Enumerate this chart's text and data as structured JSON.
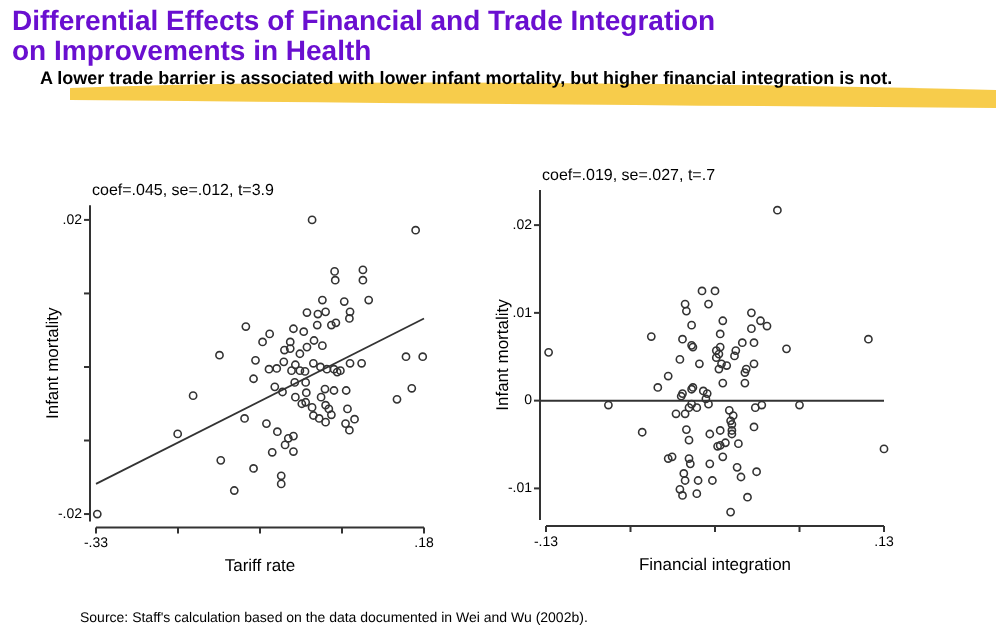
{
  "chart_data": [
    {
      "type": "scatter",
      "title": "Differential Effects of Financial and Trade Integration on Improvements in Health",
      "subtitle": "A lower trade barrier is associated with lower infant mortality, but higher financial integration is not.",
      "xlabel": "Tariff rate",
      "ylabel": "Infant mortality",
      "annotations": [
        "coef=.045, se=.012, t=3.9",
        "Source:  Staff's calculation based on the data documented in Wei and Wu (2002b)."
      ],
      "xlim": [
        -0.33,
        0.18
      ],
      "ylim": [
        -0.021,
        0.022
      ],
      "xticks": [
        {
          "value": -0.33,
          "label": "-.33"
        },
        {
          "value": -0.2025,
          "label": null
        },
        {
          "value": -0.075,
          "label": null
        },
        {
          "value": 0.0525,
          "label": null
        },
        {
          "value": 0.18,
          "label": ".18"
        }
      ],
      "yticks": [
        {
          "value": -0.02,
          "label": "-.02"
        },
        {
          "value": -0.01,
          "label": null
        },
        {
          "value": 0,
          "label": null
        },
        {
          "value": 0.01,
          "label": null
        },
        {
          "value": 0.02,
          "label": ".02"
        }
      ],
      "series": [
        {
          "color": "#333333",
          "marker": "circle",
          "x": [
            -0.328,
            0.006,
            0.167,
            0.085,
            0.041,
            0.085,
            0.042,
            0.094,
            0.056,
            0.022,
            0.027,
            0.065,
            0.064,
            -0.002,
            0.015,
            0.043,
            0.036,
            0.014,
            -0.097,
            -0.06,
            -0.071,
            -0.023,
            -0.007,
            0.009,
            -0.002,
            -0.028,
            -0.028,
            -0.037,
            -0.138,
            0.022,
            -0.038,
            -0.013,
            -0.049,
            -0.02,
            -0.005,
            -0.026,
            -0.013,
            0.008,
            0.019,
            0.029,
            0.04,
            0.045,
            0.05,
            0.065,
            0.083,
            0.152,
            0.178,
            -0.082,
            -0.061,
            -0.085,
            -0.021,
            -0.052,
            -0.04,
            -0.004,
            -0.003,
            0.026,
            0.04,
            0.059,
            -0.179,
            -0.02,
            -0.01,
            -0.004,
            0.006,
            0.02,
            0.027,
            0.032,
            0.027,
            0.017,
            0.008,
            0.036,
            0.061,
            0.161,
            0.138,
            0.072,
            0.058,
            0.064,
            -0.099,
            -0.065,
            -0.048,
            -0.031,
            -0.023,
            -0.036,
            -0.023,
            -0.056,
            -0.042,
            -0.042,
            -0.085,
            -0.136,
            -0.115,
            -0.203
          ],
          "values": [
            -0.02,
            0.02,
            0.0186,
            0.0132,
            0.013,
            0.0118,
            0.0118,
            0.0091,
            0.0089,
            0.0091,
            0.0075,
            0.0075,
            0.0066,
            0.0074,
            0.0072,
            0.006,
            0.0057,
            0.0057,
            0.0055,
            0.0045,
            0.0034,
            0.0052,
            0.0048,
            0.0036,
            0.0027,
            0.0034,
            0.0025,
            0.0023,
            0.0016,
            0.0029,
            0.0007,
            0.0018,
            -0.0002,
            0.0003,
            -0.0006,
            -0.0005,
            -0.0005,
            0.0005,
            0,
            -0.0003,
            -0.0003,
            -0.0007,
            -0.0005,
            0.0005,
            0.0005,
            0.0014,
            0.0014,
            0.0009,
            -0.0003,
            -0.0016,
            -0.0021,
            -0.0027,
            -0.0034,
            -0.0021,
            -0.0035,
            -0.003,
            -0.0032,
            -0.0032,
            -0.0039,
            -0.0041,
            -0.005,
            -0.0048,
            -0.0055,
            -0.0041,
            -0.0052,
            -0.0057,
            -0.0075,
            -0.007,
            -0.0066,
            -0.0065,
            -0.0057,
            -0.0029,
            -0.0044,
            -0.0071,
            -0.0077,
            -0.0086,
            -0.007,
            -0.0077,
            -0.0088,
            -0.0097,
            -0.0094,
            -0.0106,
            -0.0115,
            -0.0116,
            -0.0148,
            -0.0159,
            -0.0138,
            -0.0127,
            -0.0168,
            -0.0091
          ]
        },
        {
          "type": "line",
          "marker": "none",
          "color": "#333333",
          "x": [
            -0.33,
            0.18
          ],
          "values": [
            -0.0159,
            0.0066
          ]
        }
      ]
    },
    {
      "type": "scatter",
      "xlabel": "Financial integration",
      "ylabel": "Infant mortality",
      "annotations": [
        "coef=.019, se=.027, t=.7"
      ],
      "xlim": [
        -0.13,
        0.13
      ],
      "ylim": [
        -0.0136,
        0.024
      ],
      "xticks": [
        {
          "value": -0.13,
          "label": "-.13"
        },
        {
          "value": -0.065,
          "label": null
        },
        {
          "value": 0,
          "label": null
        },
        {
          "value": 0.065,
          "label": null
        },
        {
          "value": 0.13,
          "label": ".13"
        }
      ],
      "yticks": [
        {
          "value": -0.01,
          "label": "-.01"
        },
        {
          "value": 0,
          "label": "0"
        },
        {
          "value": 0.01,
          "label": ".01"
        },
        {
          "value": 0.02,
          "label": ".02"
        }
      ],
      "marker": "circle",
      "ref_lines": [
        {
          "axis": "y",
          "value": 0,
          "color": "#333333"
        }
      ],
      "series": [
        {
          "color": "#333333",
          "x": [
            -0.128,
            -0.082,
            -0.056,
            -0.049,
            -0.044,
            -0.036,
            -0.036,
            -0.033,
            -0.03,
            -0.027,
            -0.026,
            -0.025,
            -0.023,
            -0.023,
            -0.022,
            -0.018,
            -0.025,
            -0.018,
            -0.017,
            -0.018,
            -0.017,
            -0.022,
            -0.02,
            -0.02,
            -0.019,
            -0.024,
            -0.023,
            -0.027,
            -0.025,
            -0.014,
            -0.013,
            -0.02,
            -0.018,
            -0.014,
            -0.012,
            -0.01,
            -0.009,
            -0.007,
            -0.006,
            -0.005,
            -0.005,
            -0.004,
            -0.004,
            -0.002,
            0,
            0.001,
            0.001,
            0.003,
            0.003,
            0.004,
            0.004,
            0.005,
            0.006,
            0.006,
            0.004,
            0.004,
            0.002,
            0.006,
            0.008,
            0.009,
            0.011,
            0.012,
            0.013,
            0.013,
            0.013,
            0.014,
            0.012,
            0.015,
            0.016,
            0.017,
            0.018,
            0.02,
            0.021,
            0.023,
            0.023,
            0.024,
            0.025,
            0.028,
            0.028,
            0.03,
            0.03,
            0.03,
            0.031,
            0.032,
            0.035,
            0.036,
            0.04,
            0.048,
            0.055,
            0.065,
            0.118,
            0.13
          ],
          "values": [
            0.0055,
            -0.0005,
            -0.0036,
            0.0073,
            0.0015,
            0.0028,
            -0.0066,
            -0.0064,
            -0.0015,
            0.0047,
            0.0005,
            0.0008,
            -0.0015,
            0.011,
            0.0102,
            0.0086,
            0.007,
            0.0063,
            0.0061,
            0.0013,
            0.0015,
            -0.0033,
            -0.0045,
            -0.0066,
            -0.0072,
            -0.0083,
            -0.0091,
            -0.0101,
            -0.0108,
            -0.0106,
            -0.0091,
            -0.0008,
            -0.0004,
            -0.0008,
            0.0042,
            0.0125,
            0.0011,
            0.0002,
            0.0008,
            0.011,
            -0.0004,
            -0.0038,
            -0.0072,
            -0.0091,
            0.0125,
            0.0057,
            0.0049,
            0.0053,
            0.0036,
            0.0061,
            0.0076,
            0.0042,
            0.0091,
            0.002,
            -0.0034,
            -0.0051,
            -0.0052,
            -0.0064,
            -0.0048,
            0.004,
            -0.0011,
            -0.0023,
            -0.0038,
            -0.0027,
            -0.0034,
            -0.0017,
            -0.0127,
            0.0051,
            0.0057,
            -0.0076,
            -0.0049,
            -0.0087,
            0.0066,
            0.0032,
            0.002,
            0.0036,
            -0.011,
            0.01,
            0.0082,
            0.0066,
            0.0042,
            -0.003,
            -0.0008,
            -0.0081,
            0.0091,
            -0.0005,
            0.0085,
            0.0217,
            0.0059,
            -0.0005,
            0.007,
            -0.0055
          ]
        }
      ]
    }
  ]
}
